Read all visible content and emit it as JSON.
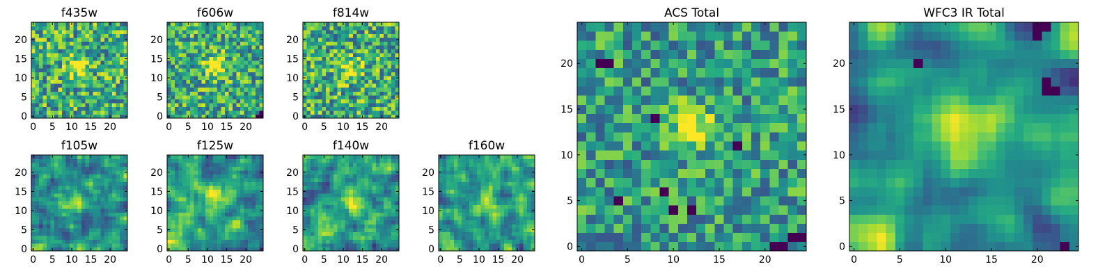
{
  "chart_data": {
    "type": "heatmap",
    "colormap": "viridis",
    "panels": [
      {
        "title": "f435w",
        "grid": 25,
        "seed": 11,
        "blob": [
          12,
          13,
          2.0,
          0.45
        ],
        "base": 0.62,
        "noise": 0.34,
        "smooth": 0,
        "hot": [],
        "xticks": [
          0,
          5,
          10,
          15,
          20
        ],
        "yticks": [
          0,
          5,
          10,
          15,
          20
        ]
      },
      {
        "title": "f606w",
        "grid": 25,
        "seed": 23,
        "blob": [
          12,
          13,
          2.0,
          0.5
        ],
        "base": 0.62,
        "noise": 0.32,
        "smooth": 0,
        "hot": [
          [
            24,
            1
          ],
          [
            24,
            0
          ],
          [
            23,
            0
          ]
        ],
        "xticks": [
          0,
          5,
          10,
          15,
          20
        ],
        "yticks": [
          0,
          5,
          10,
          15,
          20
        ]
      },
      {
        "title": "f814w",
        "grid": 25,
        "seed": 37,
        "blob": [
          12,
          12,
          2.0,
          0.35
        ],
        "base": 0.62,
        "noise": 0.34,
        "smooth": 0,
        "hot": [],
        "xticks": [
          0,
          5,
          10,
          15,
          20
        ],
        "yticks": [
          0,
          5,
          10,
          15,
          20
        ]
      },
      {
        "title": "f105w",
        "grid": 25,
        "seed": 41,
        "blob": [
          11,
          13,
          2.5,
          0.35
        ],
        "base": 0.58,
        "noise": 0.3,
        "smooth": 1,
        "hot": [],
        "corner": true,
        "xticks": [
          0,
          5,
          10,
          15,
          20
        ],
        "yticks": [
          0,
          5,
          10,
          15,
          20
        ]
      },
      {
        "title": "f125w",
        "grid": 25,
        "seed": 53,
        "blob": [
          12,
          13,
          2.5,
          0.3
        ],
        "base": 0.6,
        "noise": 0.32,
        "smooth": 1,
        "hot": [],
        "corner": true,
        "xticks": [
          0,
          5,
          10,
          15,
          20
        ],
        "yticks": [
          0,
          5,
          10,
          15,
          20
        ]
      },
      {
        "title": "f140w",
        "grid": 25,
        "seed": 67,
        "blob": [
          12,
          13,
          2.5,
          0.3
        ],
        "base": 0.62,
        "noise": 0.32,
        "smooth": 1,
        "hot": [],
        "corner": true,
        "xticks": [
          0,
          5,
          10,
          15,
          20
        ],
        "yticks": [
          0,
          5,
          10,
          15,
          20
        ]
      },
      {
        "title": "f160w",
        "grid": 25,
        "seed": 79,
        "blob": [
          12,
          12,
          2.5,
          0.3
        ],
        "base": 0.62,
        "noise": 0.32,
        "smooth": 1,
        "hot": [],
        "corner": true,
        "xticks": [
          0,
          5,
          10,
          15,
          20
        ],
        "yticks": [
          0,
          5,
          10,
          15,
          20
        ]
      },
      {
        "title": "ACS Total",
        "grid": 25,
        "seed": 97,
        "blob": [
          12,
          13,
          1.6,
          0.55
        ],
        "base": 0.55,
        "noise": 0.28,
        "smooth": 0,
        "hot": [
          [
            4,
            5
          ],
          [
            8,
            14
          ],
          [
            10,
            4
          ],
          [
            12,
            4
          ],
          [
            17,
            11
          ],
          [
            21,
            0
          ],
          [
            22,
            0
          ],
          [
            23,
            1
          ],
          [
            24,
            1
          ],
          [
            9,
            6
          ],
          [
            2,
            20
          ],
          [
            3,
            20
          ]
        ],
        "xticks": [
          0,
          5,
          10,
          15,
          20
        ],
        "yticks": [
          0,
          5,
          10,
          15,
          20
        ]
      },
      {
        "title": "WFC3 IR Total",
        "grid": 25,
        "seed": 113,
        "blob": [
          12,
          13,
          3.0,
          0.35
        ],
        "base": 0.55,
        "noise": 0.22,
        "smooth": 2,
        "hot": [
          [
            20,
            24
          ],
          [
            21,
            24
          ],
          [
            20,
            23
          ],
          [
            21,
            17
          ],
          [
            22,
            17
          ],
          [
            21,
            18
          ],
          [
            7,
            20
          ],
          [
            23,
            0
          ]
        ],
        "corner": true,
        "xticks": [
          0,
          5,
          10,
          15,
          20
        ],
        "yticks": [
          0,
          5,
          10,
          15,
          20
        ]
      }
    ]
  }
}
